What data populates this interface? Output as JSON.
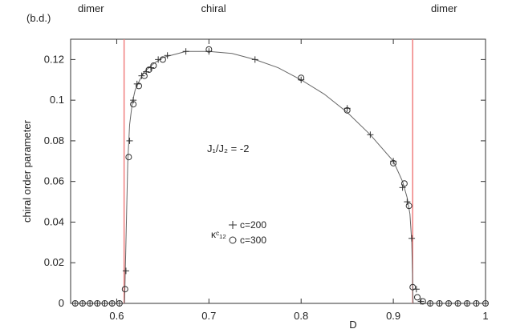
{
  "chart_data": {
    "type": "scatter",
    "title": "",
    "xlabel": "D",
    "ylabel": "chiral order parameter",
    "xlim": [
      0.55,
      1.0
    ],
    "ylim": [
      0,
      0.13
    ],
    "x_ticks": [
      0.6,
      0.7,
      0.8,
      0.9,
      1
    ],
    "x_tick_labels": [
      "0.6",
      "0.7",
      "0.8",
      "0.9",
      "1"
    ],
    "y_ticks": [
      0,
      0.02,
      0.04,
      0.06,
      0.08,
      0.1,
      0.12
    ],
    "y_tick_labels": [
      "0",
      "0.02",
      "0.04",
      "0.06",
      "0.08",
      "0.1",
      "0.12"
    ],
    "grid": false,
    "legend_position": "center-left",
    "region_labels": [
      {
        "text": "dimer",
        "x": 0.572
      },
      {
        "text": "chiral",
        "x": 0.705
      },
      {
        "text": "dimer",
        "x": 0.955
      }
    ],
    "region_sublabel": "(b.d.)",
    "transitions": [
      {
        "x": 0.608,
        "color": "#f08080"
      },
      {
        "x": 0.921,
        "color": "#f08080"
      }
    ],
    "annotation": "J₁/J₂ = -2",
    "legend_title": "κᶜ₁₂",
    "series": [
      {
        "name": "c=200",
        "marker": "plus",
        "color": "#333333",
        "x": [
          0.555,
          0.563,
          0.571,
          0.579,
          0.587,
          0.595,
          0.603,
          0.61,
          0.614,
          0.618,
          0.622,
          0.627,
          0.632,
          0.637,
          0.645,
          0.655,
          0.675,
          0.7,
          0.75,
          0.8,
          0.85,
          0.875,
          0.9,
          0.91,
          0.915,
          0.92,
          0.925,
          0.93,
          0.94,
          0.95,
          0.96,
          0.97,
          0.98,
          0.99,
          1.0
        ],
        "values": [
          0,
          0,
          0,
          0,
          0,
          0,
          0,
          0.016,
          0.08,
          0.1,
          0.108,
          0.112,
          0.114,
          0.116,
          0.12,
          0.122,
          0.124,
          0.124,
          0.12,
          0.11,
          0.096,
          0.083,
          0.07,
          0.057,
          0.05,
          0.032,
          0.007,
          0.001,
          0,
          0,
          0,
          0,
          0,
          0,
          0
        ]
      },
      {
        "name": "c=300",
        "marker": "circle",
        "color": "#333333",
        "x": [
          0.555,
          0.563,
          0.571,
          0.579,
          0.587,
          0.595,
          0.603,
          0.609,
          0.613,
          0.618,
          0.624,
          0.63,
          0.635,
          0.64,
          0.65,
          0.7,
          0.8,
          0.85,
          0.9,
          0.912,
          0.917,
          0.921,
          0.926,
          0.932,
          0.94,
          0.95,
          0.96,
          0.97,
          0.98,
          0.99,
          1.0
        ],
        "values": [
          0,
          0,
          0,
          0,
          0,
          0,
          0,
          0.007,
          0.072,
          0.098,
          0.107,
          0.112,
          0.115,
          0.117,
          0.12,
          0.125,
          0.111,
          0.095,
          0.069,
          0.059,
          0.048,
          0.008,
          0.003,
          0.001,
          0,
          0,
          0,
          0,
          0,
          0,
          0
        ]
      }
    ],
    "curve": {
      "x": [
        0.6085,
        0.61,
        0.612,
        0.614,
        0.617,
        0.62,
        0.625,
        0.63,
        0.64,
        0.65,
        0.675,
        0.7,
        0.725,
        0.75,
        0.775,
        0.8,
        0.825,
        0.85,
        0.875,
        0.9,
        0.91,
        0.915,
        0.918,
        0.92,
        0.9215
      ],
      "values": [
        0,
        0.03,
        0.07,
        0.088,
        0.099,
        0.105,
        0.11,
        0.114,
        0.118,
        0.121,
        0.124,
        0.124,
        0.123,
        0.12,
        0.116,
        0.11,
        0.103,
        0.094,
        0.083,
        0.07,
        0.06,
        0.052,
        0.044,
        0.03,
        0
      ]
    }
  }
}
